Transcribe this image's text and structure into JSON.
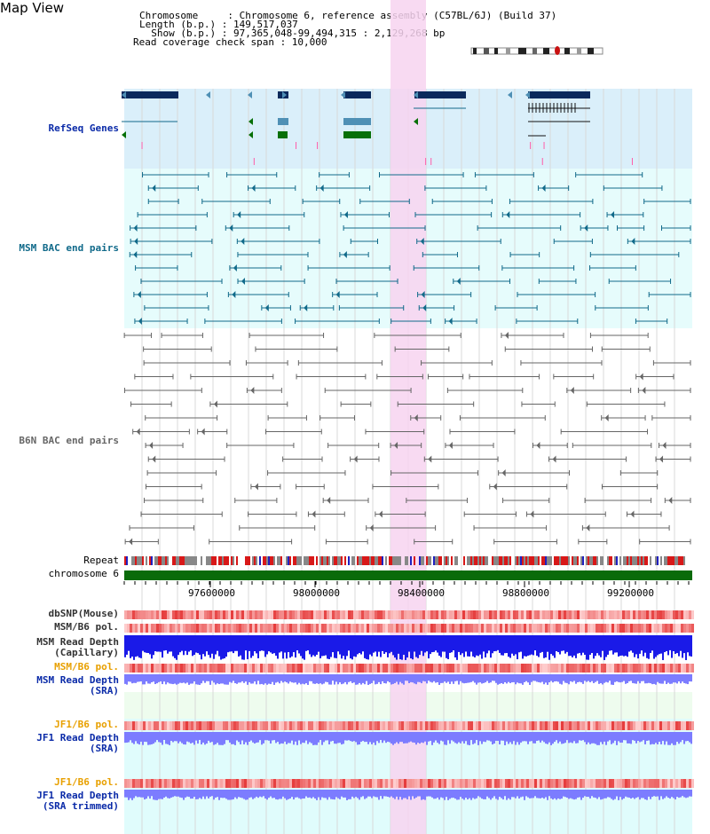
{
  "title": "Map View",
  "info": {
    "chromosome": "Chromosome     : Chromosome 6, reference assembly (C57BL/6J) (Build 37)",
    "length": "Length (b.p.) : 149,517,037",
    "show": "  Show (b.p.) : 97,365,048-99,494,315 : 2,129,268 bp",
    "coverage": "Read coverage check span : 10,000"
  },
  "tracks": {
    "refseq": "RefSeq Genes",
    "msm_bac": "MSM BAC end pairs",
    "b6n_bac": "B6N BAC end pairs",
    "repeat": "Repeat",
    "chromosome": "chromosome 6",
    "dbsnp": "dbSNP(Mouse)",
    "msm_b6_pol": "MSM/B6 pol.",
    "msm_depth_cap_1": "MSM Read Depth",
    "msm_depth_cap_2": "(Capillary)",
    "msm_b6_pol2": "MSM/B6 pol.",
    "msm_depth_sra_1": "MSM Read Depth",
    "msm_depth_sra_2": "(SRA)",
    "jf1_b6_pol": "JF1/B6 pol.",
    "jf1_depth_1": "JF1 Read Depth",
    "jf1_depth_2": "(SRA)",
    "jf1_b6_pol2": "JF1/B6 pol.",
    "jf1_trim_1": "JF1 Read Depth",
    "jf1_trim_2": "(SRA trimmed)"
  },
  "axis_ticks": [
    "97600000",
    "98000000",
    "98400000",
    "98800000",
    "99200000"
  ],
  "colors": {
    "refseq_bg": "#daeffa",
    "msm_bg": "#e6fcfc",
    "highlight": "#f7d4f0",
    "gene_dark": "#0b2a5c",
    "gene_teal": "#4f90b5",
    "gene_green": "#087008",
    "msm_line": "#116a8a",
    "b6n_line": "#666666",
    "chrom_bar": "#0a6b0a",
    "depth_blue": "#1a1ae8",
    "depth_light": "#7c7cff",
    "label_blue": "#0a2aa8",
    "label_orange": "#e8a000"
  }
}
